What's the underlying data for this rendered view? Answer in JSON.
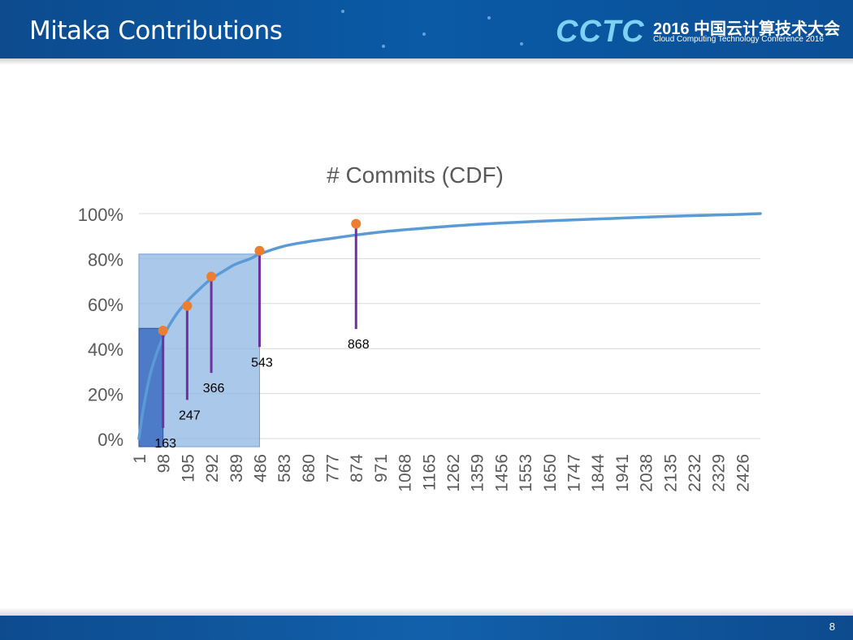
{
  "slide": {
    "title": "Mitaka Contributions",
    "page_number": "8"
  },
  "logo": {
    "brand": "CCTC",
    "line1": "2016 中国云计算技术大会",
    "line2": "Cloud Computing Technology Conference 2016"
  },
  "colors": {
    "header": "#0b55a0",
    "curve": "#5b9bd5",
    "rect_light": "#8eb6e2",
    "rect_dark": "#4472c4",
    "marker": "#ed7d31",
    "stem": "#7030a0",
    "grid": "#d9d9d9",
    "axis_text": "#595959"
  },
  "chart_data": {
    "type": "line",
    "title": "# Commits (CDF)",
    "xlabel": "",
    "ylabel": "",
    "y_ticks": [
      "0%",
      "20%",
      "40%",
      "60%",
      "80%",
      "100%"
    ],
    "ylim": [
      0,
      1
    ],
    "xlim": [
      1,
      2500
    ],
    "x_tick_labels": [
      "1",
      "98",
      "195",
      "292",
      "389",
      "486",
      "583",
      "680",
      "777",
      "874",
      "971",
      "1068",
      "1165",
      "1262",
      "1359",
      "1456",
      "1553",
      "1650",
      "1747",
      "1844",
      "1941",
      "2038",
      "2135",
      "2232",
      "2329",
      "2426"
    ],
    "grid": true,
    "series": [
      {
        "x": [
          1,
          20,
          50,
          98,
          150,
          195,
          250,
          292,
          350,
          389,
          450,
          486,
          583,
          680,
          777,
          874,
          971,
          1068,
          1165,
          1262,
          1359,
          1456,
          1553,
          1650,
          1747,
          1844,
          1941,
          2038,
          2135,
          2232,
          2329,
          2426,
          2500
        ],
        "y": [
          0.0,
          0.14,
          0.3,
          0.45,
          0.55,
          0.61,
          0.67,
          0.71,
          0.75,
          0.775,
          0.8,
          0.82,
          0.855,
          0.875,
          0.89,
          0.905,
          0.918,
          0.928,
          0.937,
          0.945,
          0.952,
          0.958,
          0.963,
          0.968,
          0.972,
          0.976,
          0.98,
          0.984,
          0.988,
          0.991,
          0.994,
          0.997,
          1.0
        ]
      }
    ],
    "markers": [
      {
        "label": "163",
        "x": 98,
        "y": 0.48,
        "label_y": 0.0
      },
      {
        "label": "247",
        "x": 195,
        "y": 0.59,
        "label_y": 0.125
      },
      {
        "label": "366",
        "x": 292,
        "y": 0.72,
        "label_y": 0.245
      },
      {
        "label": "543",
        "x": 486,
        "y": 0.835,
        "label_y": 0.36
      },
      {
        "label": "868",
        "x": 874,
        "y": 0.955,
        "label_y": 0.44
      }
    ],
    "highlight_regions": [
      {
        "x0": 1,
        "x1": 486,
        "y0": 0,
        "y1": 0.82,
        "style": "light"
      },
      {
        "x0": 1,
        "x1": 98,
        "y0": 0,
        "y1": 0.49,
        "style": "dark"
      }
    ]
  }
}
